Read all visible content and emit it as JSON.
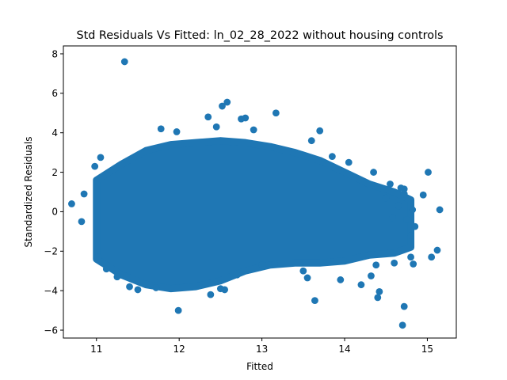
{
  "chart_data": {
    "type": "scatter",
    "title": "Std Residuals Vs Fitted: ln_02_28_2022 without housing controls",
    "xlabel": "Fitted",
    "ylabel": "Standardized Residuals",
    "xlim": [
      10.6,
      15.35
    ],
    "ylim": [
      -6.4,
      8.4
    ],
    "xticks": [
      11,
      12,
      13,
      14,
      15
    ],
    "yticks": [
      -6,
      -4,
      -2,
      0,
      2,
      4,
      6,
      8
    ],
    "xtick_labels": [
      "11",
      "12",
      "13",
      "14",
      "15"
    ],
    "ytick_labels": [
      "−6",
      "−4",
      "−2",
      "0",
      "2",
      "4",
      "6",
      "8"
    ],
    "grid": false,
    "marker_color": "#1f77b4",
    "dense_region": [
      {
        "x": 11.0,
        "ymin": -2.4,
        "ymax": 1.6
      },
      {
        "x": 11.3,
        "ymin": -3.2,
        "ymax": 2.4
      },
      {
        "x": 11.6,
        "ymin": -3.7,
        "ymax": 3.1
      },
      {
        "x": 11.9,
        "ymin": -3.9,
        "ymax": 3.4
      },
      {
        "x": 12.2,
        "ymin": -3.8,
        "ymax": 3.5
      },
      {
        "x": 12.5,
        "ymin": -3.5,
        "ymax": 3.6
      },
      {
        "x": 12.8,
        "ymin": -3.0,
        "ymax": 3.5
      },
      {
        "x": 13.1,
        "ymin": -2.7,
        "ymax": 3.3
      },
      {
        "x": 13.4,
        "ymin": -2.6,
        "ymax": 3.0
      },
      {
        "x": 13.7,
        "ymin": -2.6,
        "ymax": 2.6
      },
      {
        "x": 14.0,
        "ymin": -2.5,
        "ymax": 2.0
      },
      {
        "x": 14.3,
        "ymin": -2.2,
        "ymax": 1.4
      },
      {
        "x": 14.6,
        "ymin": -2.1,
        "ymax": 1.0
      },
      {
        "x": 14.8,
        "ymin": -1.8,
        "ymax": 0.6
      }
    ],
    "points": [
      {
        "x": 11.34,
        "y": 7.6
      },
      {
        "x": 12.58,
        "y": 5.55
      },
      {
        "x": 12.52,
        "y": 5.35
      },
      {
        "x": 13.17,
        "y": 5.0
      },
      {
        "x": 12.35,
        "y": 4.8
      },
      {
        "x": 12.75,
        "y": 4.7
      },
      {
        "x": 12.8,
        "y": 4.75
      },
      {
        "x": 11.78,
        "y": 4.2
      },
      {
        "x": 12.45,
        "y": 4.3
      },
      {
        "x": 12.9,
        "y": 4.15
      },
      {
        "x": 13.7,
        "y": 4.1
      },
      {
        "x": 11.97,
        "y": 4.05
      },
      {
        "x": 13.6,
        "y": 3.6
      },
      {
        "x": 13.85,
        "y": 2.8
      },
      {
        "x": 14.05,
        "y": 2.5
      },
      {
        "x": 14.35,
        "y": 2.0
      },
      {
        "x": 10.7,
        "y": 0.4
      },
      {
        "x": 10.85,
        "y": 0.9
      },
      {
        "x": 10.82,
        "y": -0.5
      },
      {
        "x": 10.98,
        "y": 2.3
      },
      {
        "x": 11.05,
        "y": 2.75
      },
      {
        "x": 11.02,
        "y": -2.3
      },
      {
        "x": 11.12,
        "y": -2.9
      },
      {
        "x": 11.25,
        "y": -3.3
      },
      {
        "x": 11.4,
        "y": -3.8
      },
      {
        "x": 11.5,
        "y": -3.95
      },
      {
        "x": 11.72,
        "y": -3.85
      },
      {
        "x": 11.99,
        "y": -5.0
      },
      {
        "x": 12.38,
        "y": -4.2
      },
      {
        "x": 12.5,
        "y": -3.9
      },
      {
        "x": 12.55,
        "y": -3.95
      },
      {
        "x": 12.7,
        "y": -3.2
      },
      {
        "x": 13.0,
        "y": -2.7
      },
      {
        "x": 13.15,
        "y": -2.65
      },
      {
        "x": 13.5,
        "y": -3.0
      },
      {
        "x": 13.55,
        "y": -3.35
      },
      {
        "x": 13.64,
        "y": -4.5
      },
      {
        "x": 13.95,
        "y": -3.45
      },
      {
        "x": 14.2,
        "y": -3.7
      },
      {
        "x": 14.32,
        "y": -3.25
      },
      {
        "x": 14.38,
        "y": -2.7
      },
      {
        "x": 14.4,
        "y": -4.35
      },
      {
        "x": 14.42,
        "y": -4.05
      },
      {
        "x": 14.72,
        "y": -4.8
      },
      {
        "x": 14.7,
        "y": -5.75
      },
      {
        "x": 14.6,
        "y": -2.6
      },
      {
        "x": 14.83,
        "y": -2.65
      },
      {
        "x": 14.8,
        "y": -2.3
      },
      {
        "x": 15.05,
        "y": -2.3
      },
      {
        "x": 15.12,
        "y": -1.95
      },
      {
        "x": 14.95,
        "y": 0.85
      },
      {
        "x": 15.01,
        "y": 2.0
      },
      {
        "x": 15.15,
        "y": 0.1
      },
      {
        "x": 14.72,
        "y": 1.15
      },
      {
        "x": 14.68,
        "y": 1.2
      },
      {
        "x": 14.55,
        "y": 1.4
      },
      {
        "x": 14.72,
        "y": 0.9
      },
      {
        "x": 14.75,
        "y": -0.4
      },
      {
        "x": 14.85,
        "y": -0.75
      },
      {
        "x": 14.8,
        "y": -1.2
      },
      {
        "x": 14.65,
        "y": 0.3
      },
      {
        "x": 14.82,
        "y": 0.1
      },
      {
        "x": 14.5,
        "y": 0.7
      },
      {
        "x": 14.58,
        "y": -0.3
      }
    ]
  }
}
